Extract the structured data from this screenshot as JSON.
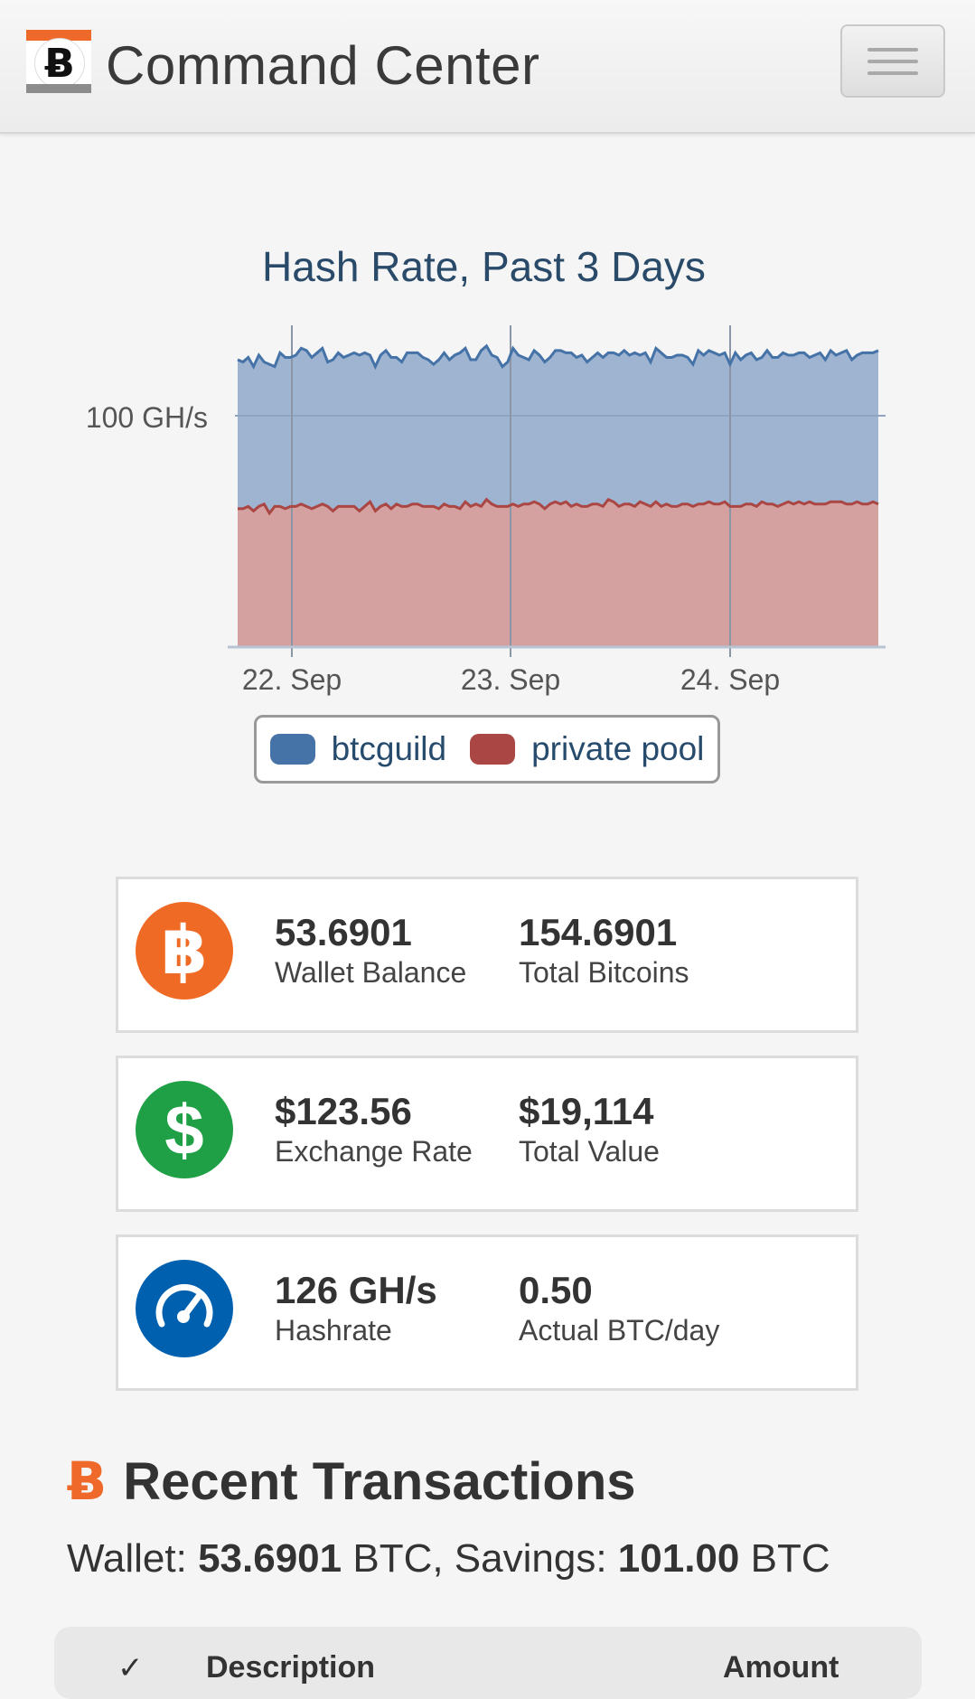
{
  "navbar": {
    "brand_glyph": "Ƀ",
    "title": "Command Center",
    "menu_icon": "hamburger-menu-icon"
  },
  "chart_data": {
    "type": "area",
    "stacked": true,
    "title": "Hash Rate, Past 3 Days",
    "y_tick_labels": [
      "100 GH/s"
    ],
    "x_tick_labels": [
      "22. Sep",
      "23. Sep",
      "24. Sep"
    ],
    "x_range": [
      "21. Sep 18:00",
      "24. Sep 17:00"
    ],
    "grid": true,
    "legend_placement": "bottom-center",
    "series": [
      {
        "name": "btcguild",
        "color": "#4572a7",
        "fill": "#9fb4d0",
        "values": [
          65,
          64,
          65,
          63,
          66,
          62,
          65,
          61,
          67,
          66,
          65,
          66,
          68,
          68,
          66,
          67,
          68,
          63,
          66,
          67,
          65,
          66,
          67,
          68,
          67,
          64,
          63,
          66,
          67,
          66,
          64,
          63,
          67,
          66,
          66,
          65,
          64,
          62,
          65,
          66,
          64,
          66,
          68,
          67,
          64,
          63,
          68,
          67,
          65,
          65,
          61,
          63,
          68,
          66,
          64,
          63,
          66,
          65,
          64,
          64,
          66,
          67,
          65,
          67,
          64,
          66,
          63,
          64,
          66,
          65,
          64,
          65,
          66,
          67,
          65,
          67,
          64,
          66,
          63,
          67,
          67,
          64,
          65,
          66,
          65,
          64,
          62,
          67,
          65,
          66,
          66,
          65,
          65,
          62,
          67,
          64,
          65,
          66,
          64,
          63,
          67,
          64,
          65,
          66,
          64,
          65,
          65,
          66,
          63,
          65,
          66,
          63,
          66,
          64,
          65,
          67,
          63,
          64,
          66,
          66,
          65,
          67
        ]
      },
      {
        "name": "private pool",
        "color": "#aa4643",
        "fill": "#d4a1a0",
        "values": [
          60,
          60,
          61,
          59,
          61,
          62,
          58,
          61,
          61,
          60,
          61,
          61,
          62,
          61,
          60,
          61,
          62,
          61,
          59,
          61,
          61,
          61,
          61,
          59,
          61,
          63,
          59,
          61,
          62,
          60,
          62,
          61,
          61,
          62,
          62,
          61,
          61,
          61,
          60,
          62,
          61,
          61,
          60,
          63,
          61,
          62,
          61,
          64,
          62,
          61,
          61,
          61,
          62,
          61,
          62,
          62,
          63,
          62,
          60,
          62,
          63,
          62,
          63,
          61,
          62,
          61,
          61,
          62,
          62,
          61,
          64,
          63,
          61,
          62,
          62,
          61,
          63,
          62,
          61,
          63,
          61,
          62,
          61,
          61,
          62,
          62,
          61,
          62,
          62,
          63,
          62,
          62,
          63,
          61,
          61,
          61,
          62,
          62,
          61,
          63,
          62,
          62,
          61,
          62,
          63,
          62,
          63,
          62,
          63,
          62,
          62,
          62,
          63,
          63,
          63,
          62,
          62,
          63,
          62,
          62,
          63,
          62
        ]
      }
    ]
  },
  "stats": [
    {
      "icon": "bitcoin-icon",
      "color": "#ef6a24",
      "glyph": "฿",
      "items": [
        {
          "value": "53.6901",
          "label": "Wallet Balance"
        },
        {
          "value": "154.6901",
          "label": "Total Bitcoins"
        }
      ]
    },
    {
      "icon": "dollar-icon",
      "color": "#1fa046",
      "glyph": "$",
      "items": [
        {
          "value": "$123.56",
          "label": "Exchange Rate"
        },
        {
          "value": "$19,114",
          "label": "Total Value"
        }
      ]
    },
    {
      "icon": "speedometer-icon",
      "color": "#0060b0",
      "items": [
        {
          "value": "126 GH/s",
          "label": "Hashrate"
        },
        {
          "value": "0.50",
          "label": "Actual BTC/day"
        }
      ]
    }
  ],
  "transactions": {
    "heading_glyph": "Ƀ",
    "heading": "Recent Transactions",
    "wallet_prefix": "Wallet: ",
    "wallet_value": "53.6901",
    "wallet_mid": " BTC, Savings: ",
    "savings_value": "101.00",
    "savings_suffix": " BTC",
    "columns": [
      "",
      "Description",
      "Amount"
    ]
  }
}
